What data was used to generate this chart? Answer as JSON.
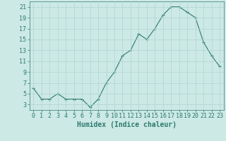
{
  "x": [
    0,
    1,
    2,
    3,
    4,
    5,
    6,
    7,
    8,
    9,
    10,
    11,
    12,
    13,
    14,
    15,
    16,
    17,
    18,
    19,
    20,
    21,
    22,
    23
  ],
  "y": [
    6,
    4,
    4,
    5,
    4,
    4,
    4,
    2.5,
    4,
    7,
    9,
    12,
    13,
    16,
    15,
    17,
    19.5,
    21,
    21,
    20,
    19,
    14.5,
    12,
    10
  ],
  "line_color": "#2d7a6e",
  "marker": "+",
  "marker_size": 3,
  "bg_color": "#cce9e5",
  "grid_color": "#b0d4d0",
  "xlabel": "Humidex (Indice chaleur)",
  "xlabel_fontsize": 7,
  "tick_fontsize": 6,
  "ylim": [
    2,
    22
  ],
  "xlim": [
    -0.5,
    23.5
  ],
  "yticks": [
    3,
    5,
    7,
    9,
    11,
    13,
    15,
    17,
    19,
    21
  ],
  "xticks": [
    0,
    1,
    2,
    3,
    4,
    5,
    6,
    7,
    8,
    9,
    10,
    11,
    12,
    13,
    14,
    15,
    16,
    17,
    18,
    19,
    20,
    21,
    22,
    23
  ]
}
